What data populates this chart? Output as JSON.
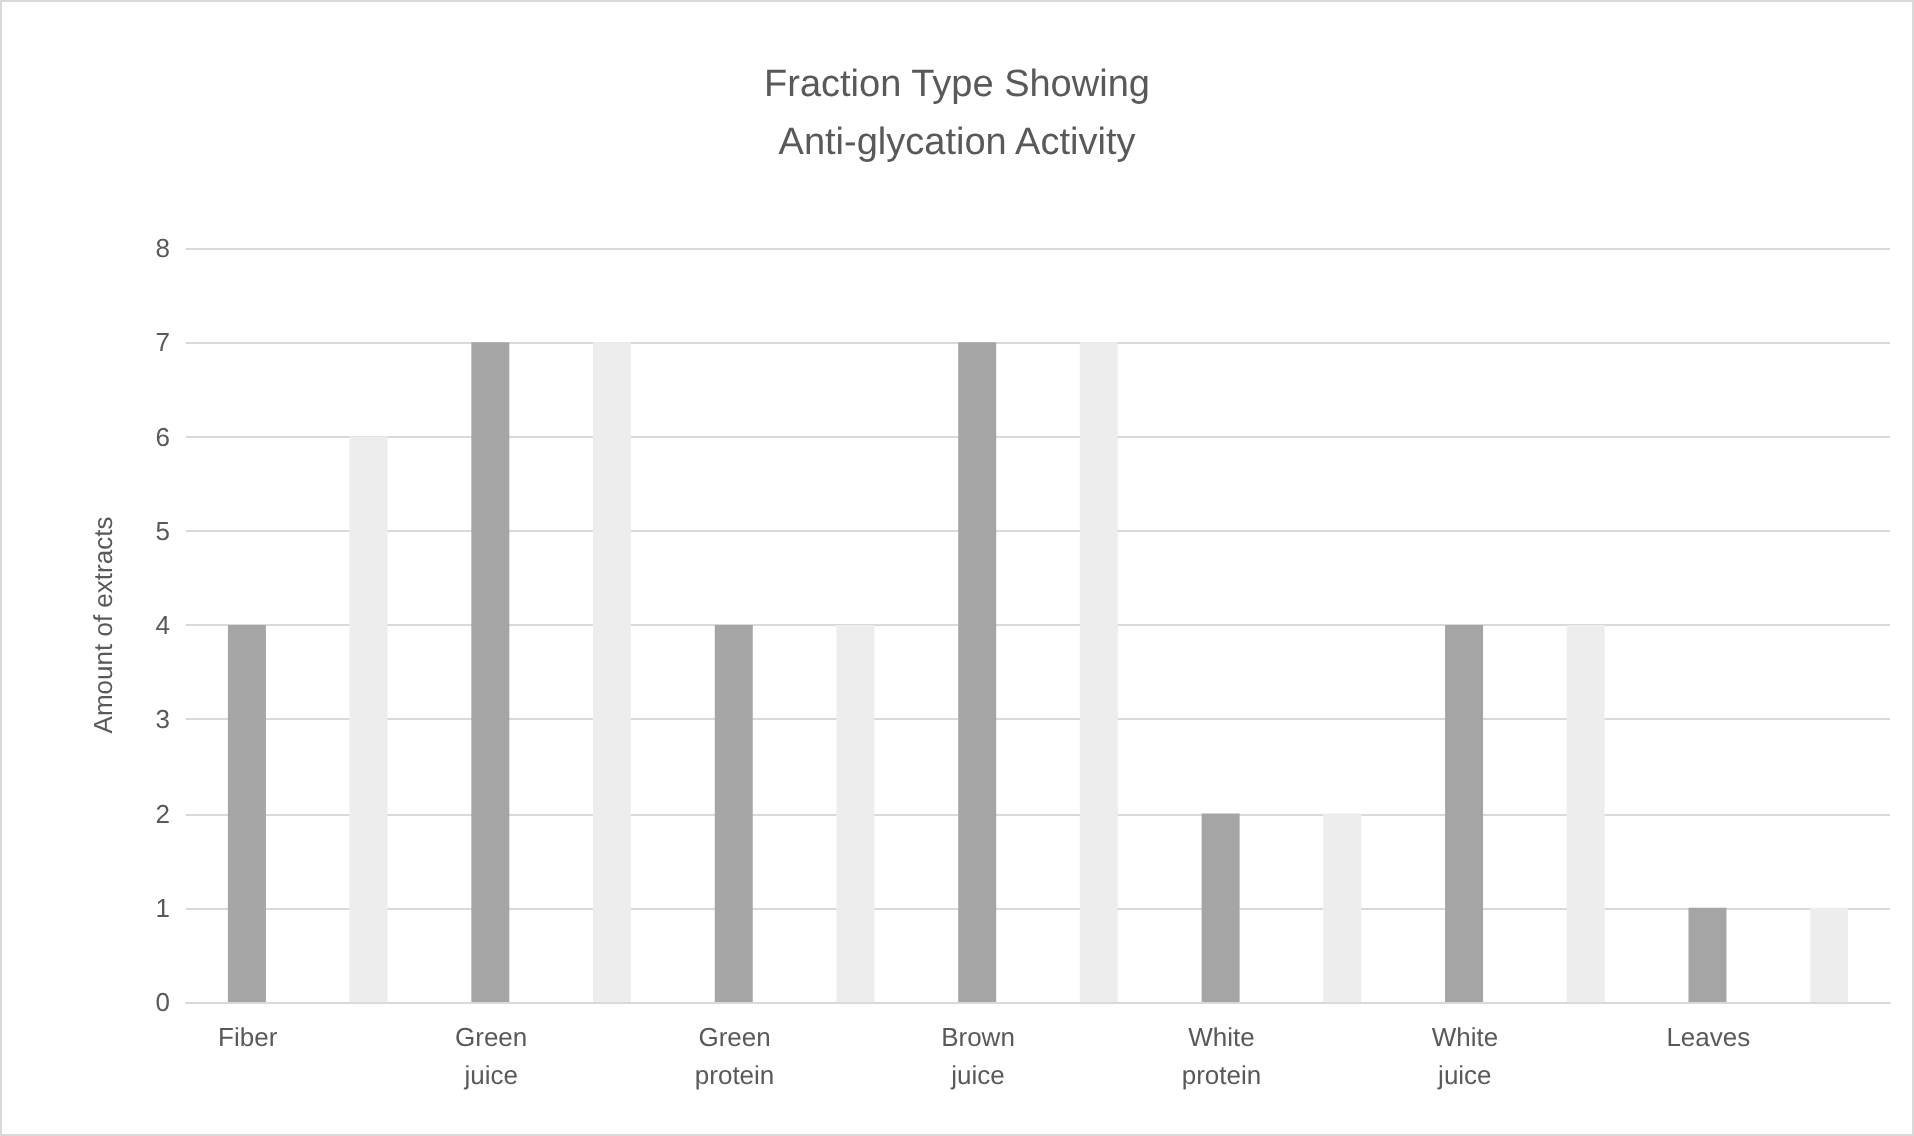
{
  "chart_data": {
    "type": "bar",
    "title": "Fraction Type Showing\nAnti-glycation Activity",
    "ylabel": "Amount of extracts",
    "categories": [
      "Fiber",
      "Green\njuice",
      "Green\nprotein",
      "Brown\njuice",
      "White\nprotein",
      "White\njuice",
      "Leaves"
    ],
    "series": [
      {
        "color": "#a5a5a5",
        "values": [
          4,
          7,
          4,
          7,
          2,
          4,
          1
        ]
      },
      {
        "color": "#ededed",
        "values": [
          6,
          7,
          4,
          7,
          2,
          4,
          1
        ]
      }
    ],
    "ylim": [
      0,
      8
    ],
    "yticks": [
      0,
      1,
      2,
      3,
      4,
      5,
      6,
      7,
      8
    ],
    "grid": "y"
  }
}
